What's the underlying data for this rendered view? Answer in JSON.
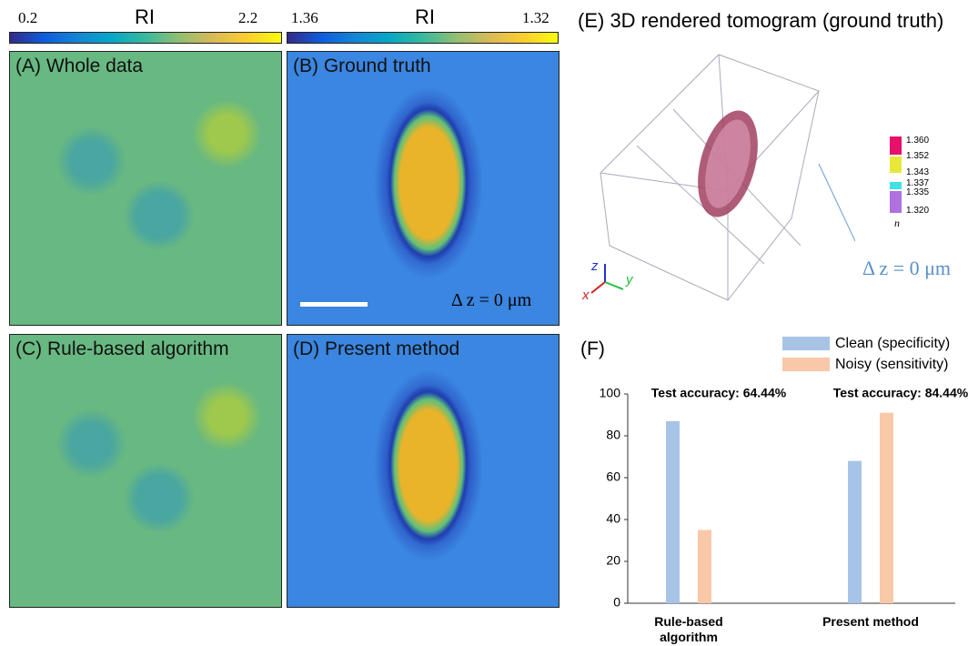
{
  "colorbars": [
    {
      "label": "RI",
      "min_label": "0.2",
      "max_label": "2.2"
    },
    {
      "label": "RI",
      "min_label": "1.36",
      "max_label": "1.32"
    }
  ],
  "panels": [
    {
      "title": "(A) Whole data"
    },
    {
      "title": "(B) Ground truth",
      "annotation": "Δ z = 0 μm"
    },
    {
      "title": "(C) Rule-based algorithm"
    },
    {
      "title": "(D) Present method"
    }
  ],
  "panel_e": {
    "title": "(E) 3D rendered tomogram (ground truth)",
    "legend_values": [
      "1.360",
      "1.352",
      "1.343",
      "1.337",
      "1.335",
      "1.320"
    ],
    "legend_unit": "n",
    "axes": [
      "z",
      "x",
      "y"
    ],
    "annotation": "Δ z = 0 μm"
  },
  "panel_f": {
    "title": "(F)"
  },
  "chart_data": {
    "type": "bar",
    "categories": [
      "Rule-based algorithm",
      "Present method"
    ],
    "series": [
      {
        "name": "Clean (specificity)",
        "color": "#a7c4e6",
        "values": [
          87,
          68
        ]
      },
      {
        "name": "Noisy (sensitivity)",
        "color": "#f8c8a8",
        "values": [
          35,
          91
        ]
      }
    ],
    "annotations": [
      "Test accuracy: 64.44%",
      "Test accuracy: 84.44%"
    ],
    "ylim": [
      0,
      100
    ],
    "yticks": [
      0,
      20,
      40,
      60,
      80,
      100
    ],
    "grid": false,
    "legend": "top-right"
  }
}
